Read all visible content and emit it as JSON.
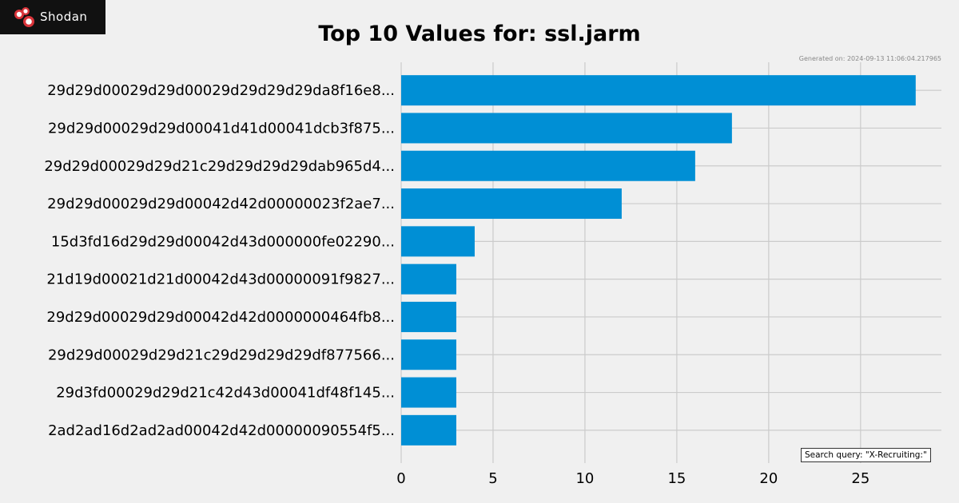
{
  "brand": {
    "name": "Shodan",
    "logo_icon": "shodan-logo-icon",
    "accent": "#d9343a"
  },
  "generated_label": "Generated on: 2024-09-13 11:06:04.217965",
  "search_query_label": "Search query: \"X-Recruiting:\"",
  "chart_data": {
    "type": "bar",
    "orientation": "horizontal",
    "title": "Top 10 Values for: ssl.jarm",
    "xlabel": "",
    "ylabel": "",
    "categories": [
      "29d29d00029d29d00029d29d29d29da8f16e8...",
      "29d29d00029d29d00041d41d00041dcb3f875...",
      "29d29d00029d29d21c29d29d29d29dab965d4...",
      "29d29d00029d29d00042d42d00000023f2ae7...",
      "15d3fd16d29d29d00042d43d000000fe02290...",
      "21d19d00021d21d00042d43d00000091f9827...",
      "29d29d00029d29d00042d42d0000000464fb8...",
      "29d29d00029d29d21c29d29d29d29df877566...",
      "29d3fd00029d29d21c42d43d00041df48f145...",
      "2ad2ad16d2ad2ad00042d42d00000090554f5..."
    ],
    "values": [
      28,
      18,
      16,
      12,
      4,
      3,
      3,
      3,
      3,
      3
    ],
    "xlim": [
      0,
      29.4
    ],
    "xticks": [
      0,
      5,
      10,
      15,
      20,
      25
    ],
    "grid": true,
    "bar_color": "#008fd5",
    "grid_color": "#cbcbcb"
  }
}
